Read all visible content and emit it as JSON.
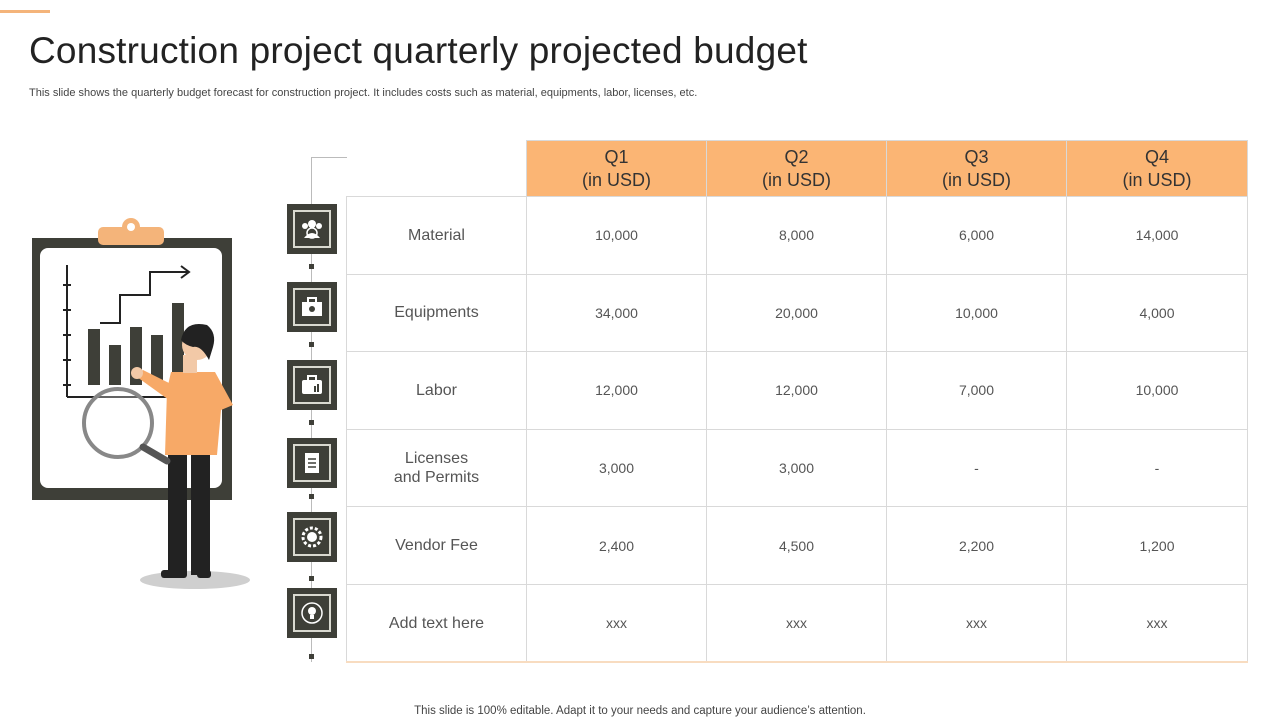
{
  "title": "Construction project quarterly projected budget",
  "subtitle": "This slide shows the quarterly budget forecast for construction project. It includes costs such as material, equipments, labor, licenses, etc.",
  "footer": "This slide is 100% editable. Adapt it to your needs and capture your audience’s attention.",
  "colors": {
    "accent": "#fbb574",
    "dark": "#3e3f38"
  },
  "table": {
    "headers": [
      {
        "line1": "Q1",
        "line2": "(in USD)"
      },
      {
        "line1": "Q2",
        "line2": "(in USD)"
      },
      {
        "line1": "Q3",
        "line2": "(in USD)"
      },
      {
        "line1": "Q4",
        "line2": "(in USD)"
      }
    ],
    "rows": [
      {
        "label": "Material",
        "icon": "team-icon",
        "values": [
          "10,000",
          "8,000",
          "6,000",
          "14,000"
        ]
      },
      {
        "label": "Equipments",
        "icon": "toolbox-icon",
        "values": [
          "34,000",
          "20,000",
          "10,000",
          "4,000"
        ]
      },
      {
        "label": "Labor",
        "icon": "briefcase-icon",
        "values": [
          "12,000",
          "12,000",
          "7,000",
          "10,000"
        ]
      },
      {
        "label_line1": "Licenses",
        "label_line2": "and Permits",
        "icon": "checklist-icon",
        "values": [
          "3,000",
          "3,000",
          "-",
          "-"
        ]
      },
      {
        "label": "Vendor Fee",
        "icon": "gear-people-icon",
        "values": [
          "2,400",
          "4,500",
          "2,200",
          "1,200"
        ]
      },
      {
        "label": "Add text here",
        "icon": "idea-cycle-icon",
        "values": [
          "xxx",
          "xxx",
          "xxx",
          "xxx"
        ]
      }
    ]
  }
}
